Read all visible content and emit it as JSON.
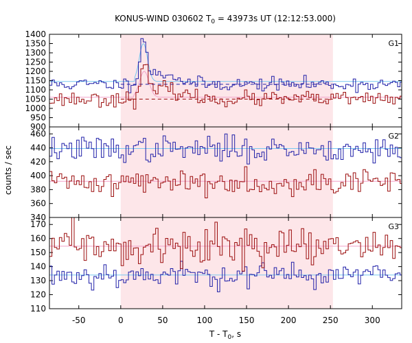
{
  "chart_data": {
    "type": "line",
    "title": {
      "prefix": "KONUS-WIND 030602 T",
      "sub": "0",
      "suffix": " = 43973s UT (12:12:53.000)"
    },
    "xlabel": {
      "prefix": "T - T",
      "sub": "0",
      "suffix": ", s"
    },
    "ylabel": "counts / sec",
    "xlim": [
      -85,
      335
    ],
    "xticks": [
      -50,
      0,
      50,
      100,
      150,
      200,
      250,
      300
    ],
    "xtick_labels": [
      "-50",
      "0",
      "50",
      "100",
      "150",
      "200",
      "250",
      "300"
    ],
    "shaded_interval": [
      0,
      253
    ],
    "colors": {
      "blue": "#1f1fa8",
      "red": "#9b0d0d",
      "light_blue": "#77c7f0",
      "pink": "#f2a0c8",
      "shade": "#fde6e9",
      "frame": "#000000"
    },
    "panels": [
      {
        "label": "G1",
        "ylim": [
          900,
          1400
        ],
        "yticks": [
          900,
          950,
          1000,
          1050,
          1100,
          1150,
          1200,
          1250,
          1300,
          1350,
          1400
        ],
        "ytick_labels": [
          "900",
          "950",
          "1000",
          "1050",
          "1100",
          "1150",
          "1200",
          "1250",
          "1300",
          "1350",
          "1400"
        ],
        "series": [
          {
            "color": "blue",
            "background": 1130,
            "noise": 18,
            "seed": 11,
            "pulses": [
              {
                "t0": 27,
                "amp": 225,
                "width": 6
              },
              {
                "t0": 50,
                "amp": 60,
                "width": 25
              }
            ],
            "fit_level": 1145,
            "fit_bump": {
              "t0": 27,
              "amp": 205,
              "width": 7
            },
            "fit_color": "light_blue",
            "fit_end": 335,
            "dashed_level": 1130,
            "dashed_start": 0,
            "dashed_end": 253
          },
          {
            "color": "red",
            "background": 1050,
            "noise": 20,
            "seed": 23,
            "pulses": [
              {
                "t0": 28,
                "amp": 150,
                "width": 7
              },
              {
                "t0": 55,
                "amp": 55,
                "width": 25
              }
            ],
            "fit_level": 1060,
            "fit_bump": {
              "t0": 28,
              "amp": 140,
              "width": 8
            },
            "fit_color": "pink",
            "fit_end": 335,
            "dashed_level": 1050,
            "dashed_start": 0,
            "dashed_end": 253
          }
        ]
      },
      {
        "label": "G2",
        "ylim": [
          340,
          470
        ],
        "yticks": [
          340,
          360,
          380,
          400,
          420,
          440,
          460
        ],
        "ytick_labels": [
          "340",
          "360",
          "380",
          "400",
          "420",
          "440",
          "460"
        ],
        "series": [
          {
            "color": "blue",
            "background": 438,
            "noise": 9,
            "seed": 37,
            "pulses": [],
            "fit_level": 439,
            "fit_color": "light_blue",
            "fit_end": 335
          },
          {
            "color": "red",
            "background": 391,
            "noise": 9,
            "seed": 41,
            "pulses": [],
            "fit_level": 392,
            "fit_color": "pink",
            "fit_end": 335
          }
        ]
      },
      {
        "label": "G3",
        "ylim": [
          110,
          175
        ],
        "yticks": [
          110,
          120,
          130,
          140,
          150,
          160,
          170
        ],
        "ytick_labels": [
          "110",
          "120",
          "130",
          "140",
          "150",
          "160",
          "170"
        ],
        "series": [
          {
            "color": "blue",
            "background": 134,
            "noise": 4.5,
            "seed": 53,
            "pulses": [],
            "fit_level": 134,
            "fit_color": "light_blue",
            "fit_end": 335
          },
          {
            "color": "red",
            "background": 154,
            "noise": 6,
            "seed": 59,
            "pulses": [],
            "fit_level": 154.5,
            "fit_color": "pink",
            "fit_end": 335
          }
        ]
      }
    ]
  }
}
